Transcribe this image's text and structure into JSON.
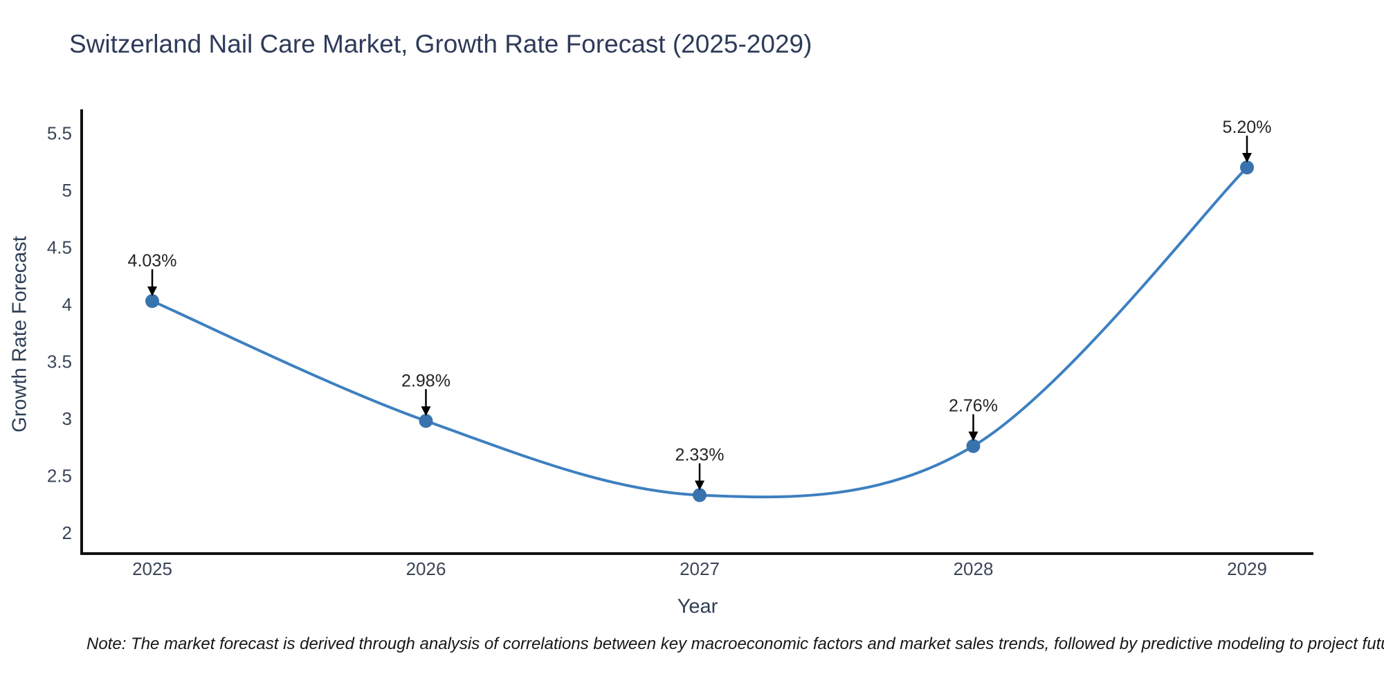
{
  "header": {
    "title": "Switzerland Nail Care Market, Growth Rate Forecast (2025-2029)"
  },
  "chart_data": {
    "type": "line",
    "title": "Switzerland Nail Care Market, Growth Rate Forecast (2025-2029)",
    "categories": [
      "2025",
      "2026",
      "2027",
      "2028",
      "2029"
    ],
    "values": [
      4.03,
      2.98,
      2.33,
      2.76,
      5.2
    ],
    "point_labels": [
      "4.03%",
      "2.98%",
      "2.33%",
      "2.76%",
      "5.20%"
    ],
    "xlabel": "Year",
    "ylabel": "Growth Rate Forecast",
    "ylim": [
      1.8,
      5.75
    ],
    "yticks": [
      2,
      2.5,
      3,
      3.5,
      4,
      4.5,
      5,
      5.5
    ],
    "ytick_labels": [
      "2",
      "2.5",
      "3",
      "3.5",
      "4",
      "4.5",
      "5",
      "5.5"
    ],
    "grid": false,
    "legend_position": "none",
    "line_shape": "spline",
    "colors": {
      "line": "#3d80c0",
      "marker": "#3973ad",
      "axis": "#111111",
      "tick_label": "#3a4556",
      "annotation_text": "#222426",
      "annotation_arrow": "#000000",
      "title": "#2e3a59"
    }
  },
  "footnote": {
    "text": "Note: The market forecast is derived through analysis of correlations between key macroeconomic factors and market sales trends, followed by predictive modeling to project future sales"
  }
}
